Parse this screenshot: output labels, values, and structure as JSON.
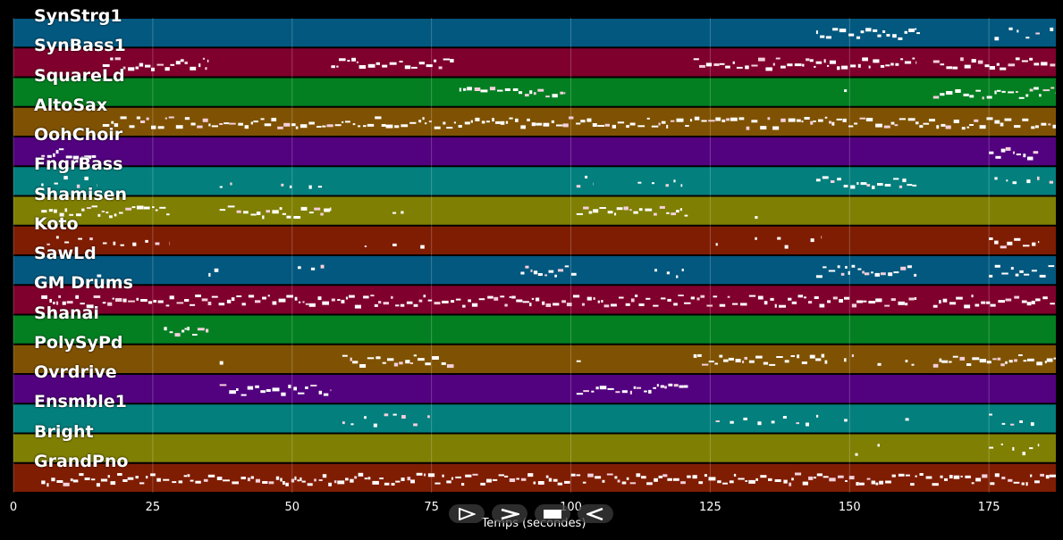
{
  "tracks": [
    {
      "name": "SynStrg1",
      "color": "#03587f"
    },
    {
      "name": "SynBass1",
      "color": "#7f002c"
    },
    {
      "name": "SquareLd",
      "color": "#037f21"
    },
    {
      "name": "AltoSax",
      "color": "#7f5203"
    },
    {
      "name": "OohChoir",
      "color": "#52017f"
    },
    {
      "name": "FngrBass",
      "color": "#037f7d"
    },
    {
      "name": "Shamisen",
      "color": "#7f7f03"
    },
    {
      "name": "Koto",
      "color": "#7f1d03"
    },
    {
      "name": "SawLd",
      "color": "#03587f"
    },
    {
      "name": "GM Drums",
      "color": "#7f002c"
    },
    {
      "name": "Shanai",
      "color": "#037f21"
    },
    {
      "name": "PolySyPd",
      "color": "#7f5203"
    },
    {
      "name": "Ovrdrive",
      "color": "#52017f"
    },
    {
      "name": "Ensmble1",
      "color": "#037f7d"
    },
    {
      "name": "Bright",
      "color": "#7f7f03"
    },
    {
      "name": "GrandPno",
      "color": "#7f1d03"
    }
  ],
  "axis": {
    "xlabel": "Temps (secondes)",
    "xlim": [
      0,
      187
    ],
    "ticks": [
      "0",
      "25",
      "50",
      "75",
      "100",
      "125",
      "150",
      "175"
    ]
  },
  "grid_on": true,
  "note_segments": [
    [
      0,
      [
        [
          144,
          162,
          "dense"
        ],
        [
          162,
          163,
          "sparse"
        ],
        [
          176,
          187,
          "sparse"
        ]
      ]
    ],
    [
      1,
      [
        [
          16,
          35,
          "dense"
        ],
        [
          57,
          79,
          "dense"
        ],
        [
          122,
          162,
          "dense"
        ],
        [
          165,
          187,
          "dense"
        ]
      ]
    ],
    [
      2,
      [
        [
          80,
          99,
          "dense"
        ],
        [
          149,
          150,
          "sparse"
        ],
        [
          165,
          187,
          "dense"
        ]
      ]
    ],
    [
      3,
      [
        [
          16,
          187,
          "dense"
        ]
      ]
    ],
    [
      4,
      [
        [
          5,
          15,
          "dense"
        ],
        [
          175,
          184,
          "dense"
        ]
      ]
    ],
    [
      5,
      [
        [
          5,
          15,
          "sparse"
        ],
        [
          37,
          40,
          "sparse"
        ],
        [
          48,
          51,
          "sparse"
        ],
        [
          53,
          56,
          "sparse"
        ],
        [
          101,
          104,
          "sparse"
        ],
        [
          112,
          115,
          "sparse"
        ],
        [
          117,
          120,
          "sparse"
        ],
        [
          144,
          162,
          "dense"
        ],
        [
          176,
          187,
          "sparse"
        ]
      ]
    ],
    [
      6,
      [
        [
          5,
          28,
          "dense"
        ],
        [
          37,
          57,
          "dense"
        ],
        [
          68,
          70,
          "sparse"
        ],
        [
          101,
          121,
          "dense"
        ],
        [
          133,
          134,
          "sparse"
        ]
      ]
    ],
    [
      7,
      [
        [
          6,
          28,
          "sparse"
        ],
        [
          63,
          64,
          "sparse"
        ],
        [
          68,
          70,
          "sparse"
        ],
        [
          73,
          74,
          "sparse"
        ],
        [
          126,
          127,
          "sparse"
        ],
        [
          133,
          134,
          "sparse"
        ],
        [
          137,
          139,
          "sparse"
        ],
        [
          143,
          145,
          "sparse"
        ],
        [
          175,
          184,
          "dense"
        ]
      ]
    ],
    [
      8,
      [
        [
          15,
          16,
          "sparse"
        ],
        [
          35,
          37,
          "sparse"
        ],
        [
          51,
          57,
          "sparse"
        ],
        [
          91,
          101,
          "dense"
        ],
        [
          115,
          121,
          "sparse"
        ],
        [
          144,
          162,
          "dense"
        ],
        [
          175,
          187,
          "dense"
        ]
      ]
    ],
    [
      9,
      [
        [
          5,
          162,
          "dense"
        ],
        [
          165,
          187,
          "dense"
        ]
      ]
    ],
    [
      10,
      [
        [
          27,
          35,
          "dense"
        ]
      ]
    ],
    [
      11,
      [
        [
          37,
          38,
          "sparse"
        ],
        [
          59,
          79,
          "dense"
        ],
        [
          101,
          102,
          "sparse"
        ],
        [
          122,
          146,
          "dense"
        ],
        [
          149,
          151,
          "sparse"
        ],
        [
          155,
          157,
          "sparse"
        ],
        [
          160,
          162,
          "sparse"
        ],
        [
          165,
          187,
          "dense"
        ]
      ]
    ],
    [
      12,
      [
        [
          37,
          57,
          "dense"
        ],
        [
          101,
          121,
          "dense"
        ]
      ]
    ],
    [
      13,
      [
        [
          59,
          75,
          "sparse"
        ],
        [
          126,
          146,
          "sparse"
        ],
        [
          149,
          151,
          "sparse"
        ],
        [
          160,
          162,
          "sparse"
        ],
        [
          175,
          184,
          "sparse"
        ]
      ]
    ],
    [
      14,
      [
        [
          151,
          152,
          "sparse"
        ],
        [
          155,
          156,
          "sparse"
        ],
        [
          175,
          184,
          "sparse"
        ]
      ]
    ],
    [
      15,
      [
        [
          5,
          187,
          "dense"
        ]
      ]
    ]
  ],
  "controls": [
    {
      "name": "play-button",
      "icon": "play-icon"
    },
    {
      "name": "next-button",
      "icon": "chevron-right-icon"
    },
    {
      "name": "stop-button",
      "icon": "stop-icon"
    },
    {
      "name": "back-button",
      "icon": "back-icon"
    }
  ]
}
